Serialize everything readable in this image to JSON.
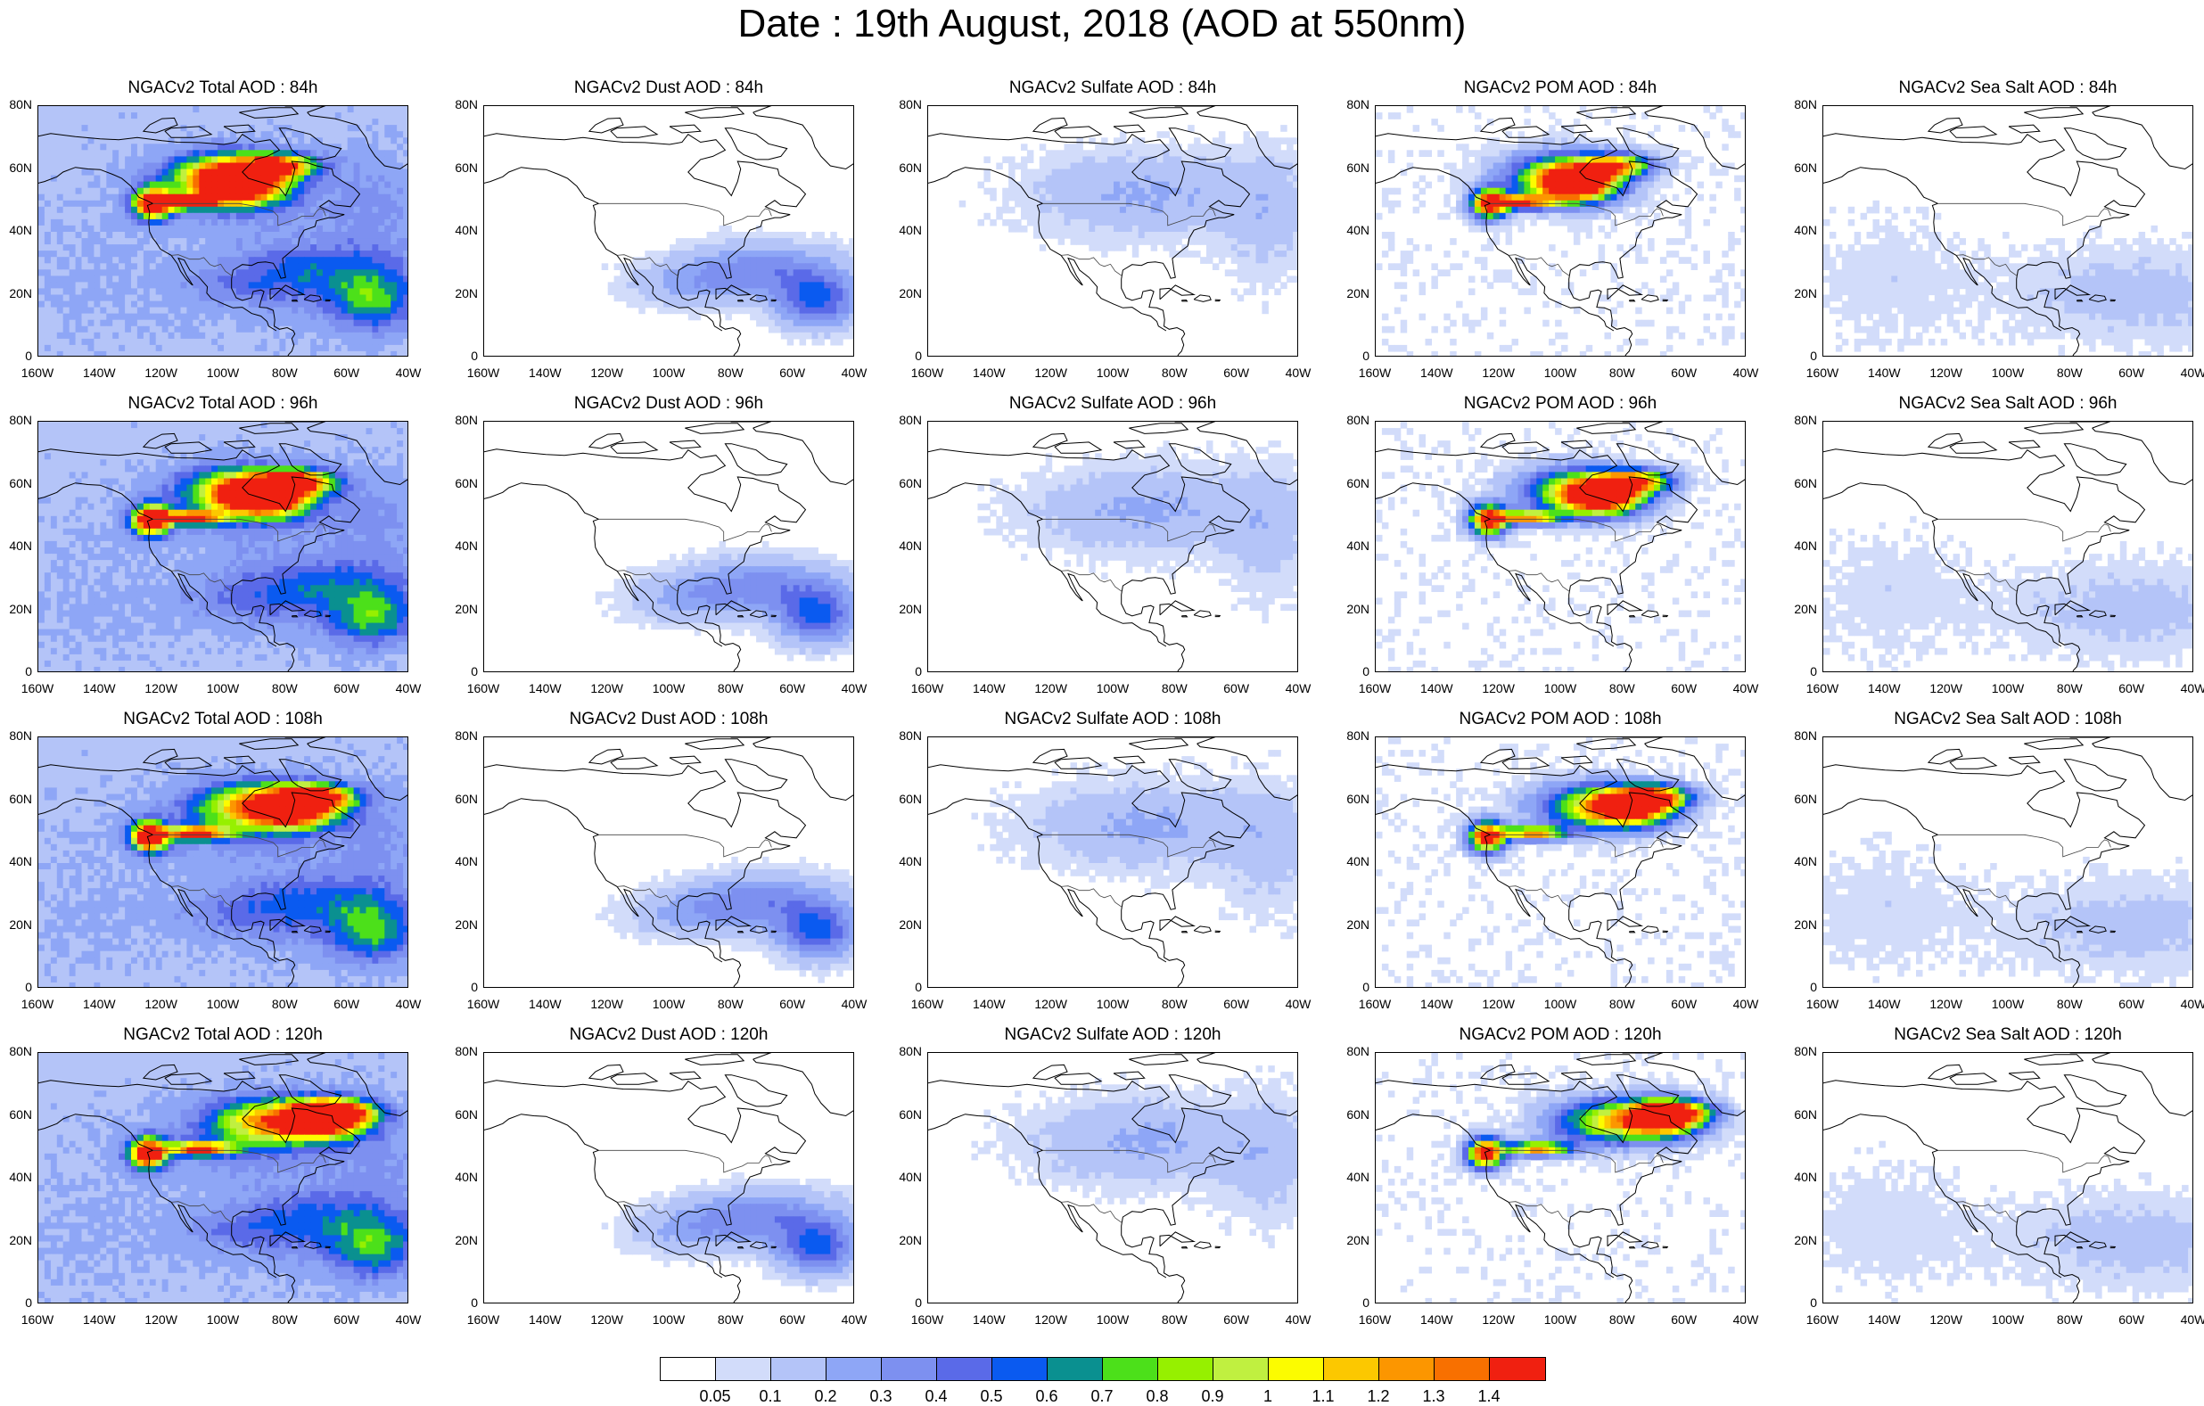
{
  "title": "Date : 19th August, 2018 (AOD at 550nm)",
  "y_ticks": [
    "80N",
    "60N",
    "40N",
    "20N",
    "0"
  ],
  "x_ticks": [
    "160W",
    "140W",
    "120W",
    "100W",
    "80W",
    "60W",
    "40W"
  ],
  "panels": [
    [
      {
        "title": "NGACv2 Total AOD : 84h",
        "field": "total",
        "time": 84
      },
      {
        "title": "NGACv2 Dust AOD : 84h",
        "field": "dust",
        "time": 84
      },
      {
        "title": "NGACv2 Sulfate AOD : 84h",
        "field": "sulfate",
        "time": 84
      },
      {
        "title": "NGACv2 POM AOD : 84h",
        "field": "pom",
        "time": 84
      },
      {
        "title": "NGACv2 Sea Salt AOD : 84h",
        "field": "seasalt",
        "time": 84
      }
    ],
    [
      {
        "title": "NGACv2 Total AOD : 96h",
        "field": "total",
        "time": 96
      },
      {
        "title": "NGACv2 Dust AOD : 96h",
        "field": "dust",
        "time": 96
      },
      {
        "title": "NGACv2 Sulfate AOD : 96h",
        "field": "sulfate",
        "time": 96
      },
      {
        "title": "NGACv2 POM AOD : 96h",
        "field": "pom",
        "time": 96
      },
      {
        "title": "NGACv2 Sea Salt AOD : 96h",
        "field": "seasalt",
        "time": 96
      }
    ],
    [
      {
        "title": "NGACv2 Total AOD : 108h",
        "field": "total",
        "time": 108
      },
      {
        "title": "NGACv2 Dust AOD : 108h",
        "field": "dust",
        "time": 108
      },
      {
        "title": "NGACv2 Sulfate AOD : 108h",
        "field": "sulfate",
        "time": 108
      },
      {
        "title": "NGACv2 POM AOD : 108h",
        "field": "pom",
        "time": 108
      },
      {
        "title": "NGACv2 Sea Salt AOD : 108h",
        "field": "seasalt",
        "time": 108
      }
    ],
    [
      {
        "title": "NGACv2 Total AOD : 120h",
        "field": "total",
        "time": 120
      },
      {
        "title": "NGACv2 Dust AOD : 120h",
        "field": "dust",
        "time": 120
      },
      {
        "title": "NGACv2 Sulfate AOD : 120h",
        "field": "sulfate",
        "time": 120
      },
      {
        "title": "NGACv2 POM AOD : 120h",
        "field": "pom",
        "time": 120
      },
      {
        "title": "NGACv2 Sea Salt  AOD : 120h",
        "field": "seasalt",
        "time": 120
      }
    ]
  ],
  "colorbar": {
    "labels": [
      "0.05",
      "0.1",
      "0.2",
      "0.3",
      "0.4",
      "0.5",
      "0.6",
      "0.7",
      "0.8",
      "0.9",
      "1",
      "1.1",
      "1.2",
      "1.3",
      "1.4"
    ],
    "colors": [
      "#ffffff",
      "#d2dcfa",
      "#b4c4f8",
      "#8ea6f6",
      "#7d90f0",
      "#5a6ae8",
      "#0a5af0",
      "#0a9090",
      "#4ce01a",
      "#96f000",
      "#c0f040",
      "#fcfc00",
      "#fcc800",
      "#fc9600",
      "#f87000",
      "#f02010"
    ]
  },
  "chart_data": {
    "type": "heatmap",
    "title": "Date : 19th August, 2018 (AOD at 550nm)",
    "variables": [
      "NGACv2 Total AOD",
      "NGACv2 Dust AOD",
      "NGACv2 Sulfate AOD",
      "NGACv2 POM AOD",
      "NGACv2 Sea Salt AOD"
    ],
    "forecast_hours": [
      84,
      96,
      108,
      120
    ],
    "lon_range": [
      -160,
      -40
    ],
    "lat_range": [
      0,
      80
    ],
    "colorbar_levels": [
      0.05,
      0.1,
      0.2,
      0.3,
      0.4,
      0.5,
      0.6,
      0.7,
      0.8,
      0.9,
      1,
      1.1,
      1.2,
      1.3,
      1.4
    ]
  }
}
